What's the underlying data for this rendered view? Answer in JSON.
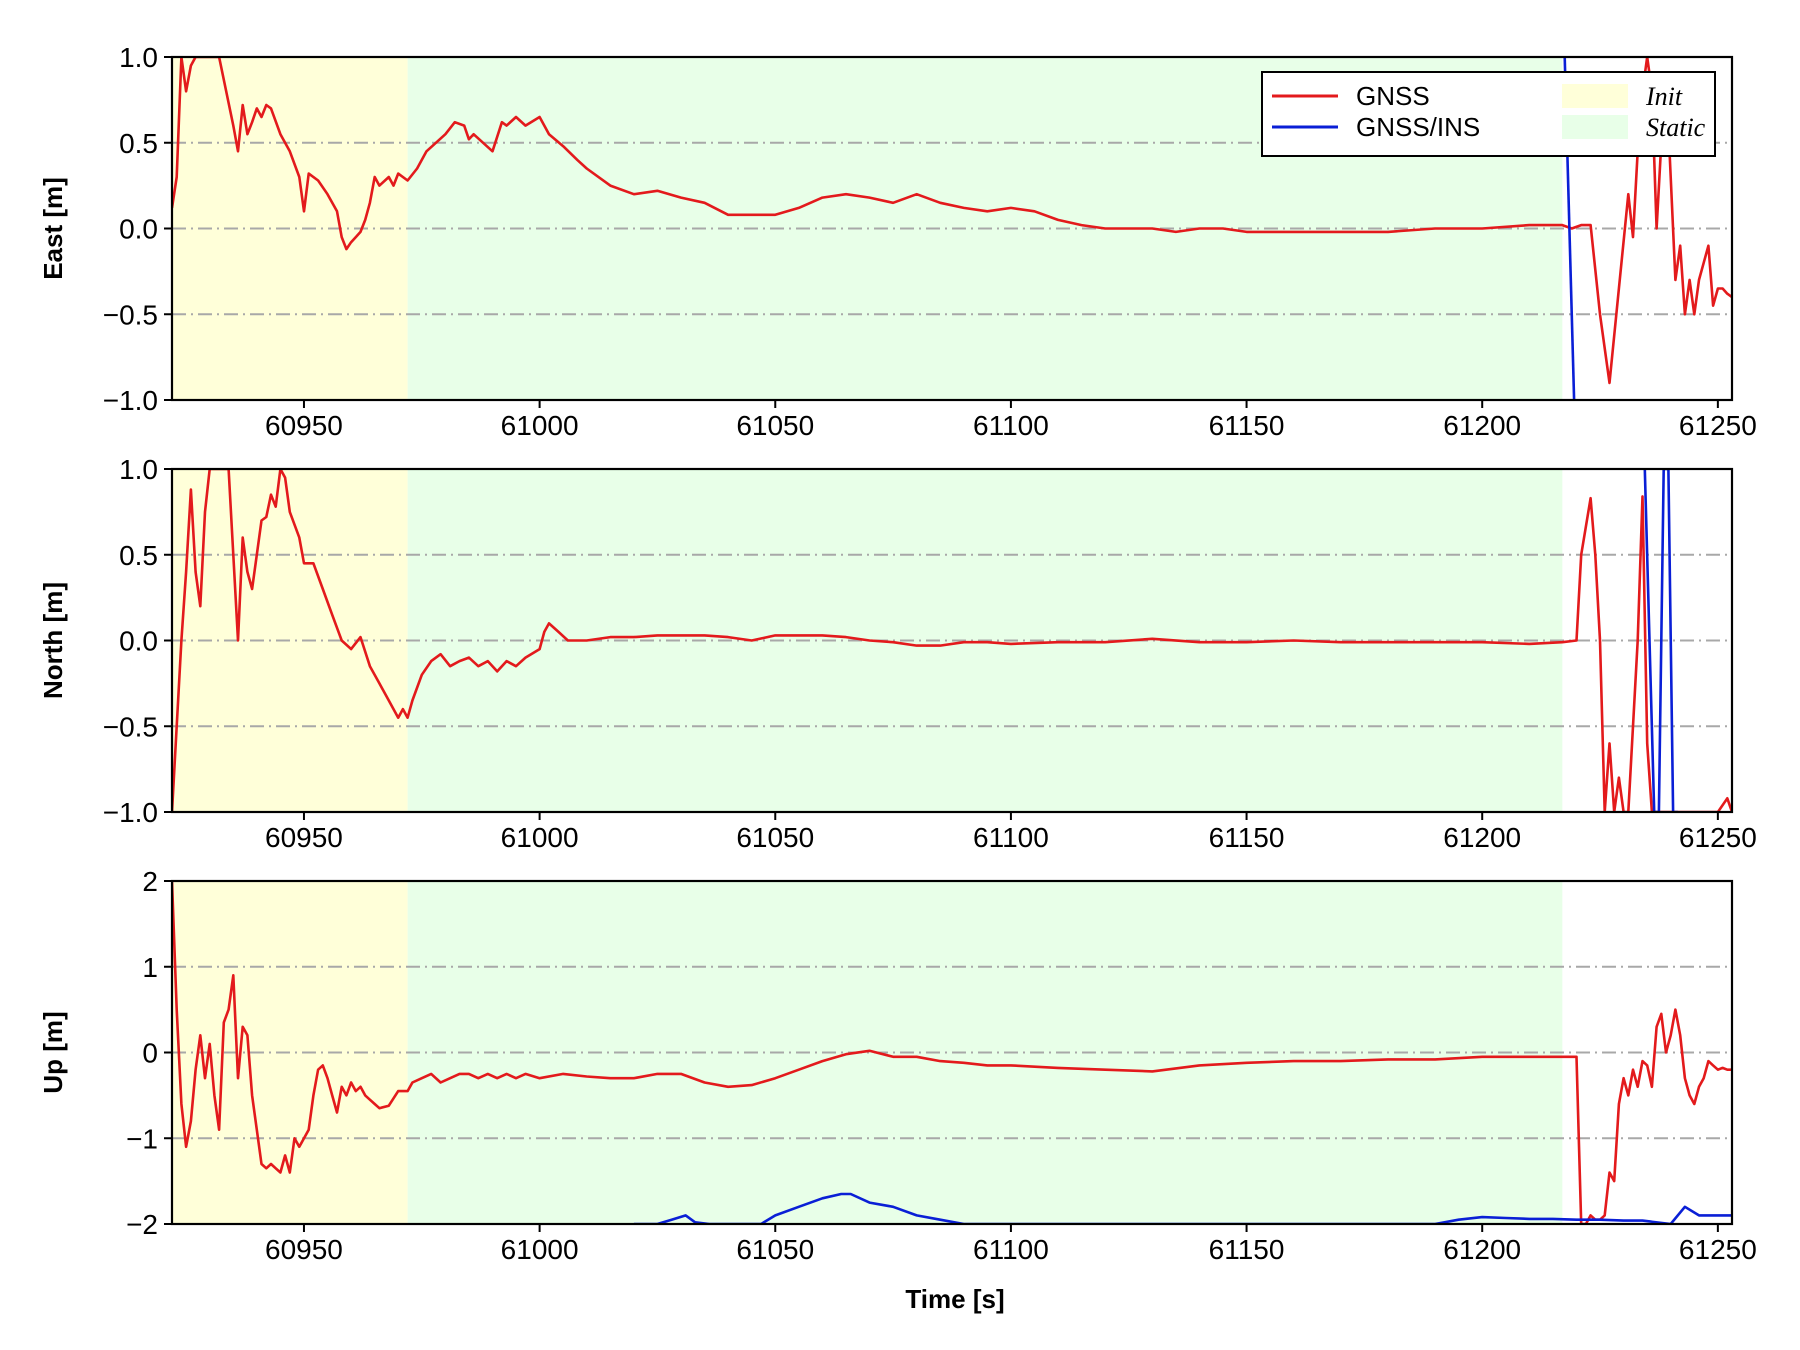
{
  "chart_data": {
    "type": "line",
    "xlabel": "Time [s]",
    "xlim": [
      60922,
      61253
    ],
    "xticks": [
      60950,
      61000,
      61050,
      61100,
      61150,
      61200,
      61250
    ],
    "grid": "horizontal dash-dot, gray",
    "legend": {
      "placement": "top-right (first panel)",
      "entries": [
        {
          "label": "GNSS",
          "kind": "line",
          "color": "#e31a1c"
        },
        {
          "label": "GNSS/INS",
          "kind": "line",
          "color": "#0a1fd6"
        },
        {
          "label": "Init",
          "kind": "patch",
          "color": "#ffffd9"
        },
        {
          "label": "Static",
          "kind": "patch",
          "color": "#e8ffe8"
        }
      ]
    },
    "regions": [
      {
        "label": "Init",
        "x": [
          60922,
          60972
        ],
        "color": "#ffffd9"
      },
      {
        "label": "Static",
        "x": [
          60972,
          61217
        ],
        "color": "#e8ffe8"
      }
    ],
    "colors": {
      "GNSS": "#e31a1c",
      "GNSS/INS": "#0a1fd6",
      "grid": "#a8a8a8"
    },
    "panels": [
      {
        "ylabel": "East [m]",
        "ylim": [
          -1.0,
          1.0
        ],
        "yticks": [
          -1.0,
          -0.5,
          0.0,
          0.5,
          1.0
        ],
        "ytick_labels": [
          "−1.0",
          "−0.5",
          "0.0",
          "0.5",
          "1.0"
        ],
        "series": [
          {
            "name": "GNSS",
            "x": [
              60922,
              60923,
              60924,
              60925,
              60926,
              60927,
              60928,
              60930,
              60932,
              60935,
              60936,
              60937,
              60938,
              60939,
              60940,
              60941,
              60942,
              60943,
              60945,
              60947,
              60949,
              60950,
              60951,
              60953,
              60955,
              60957,
              60958,
              60959,
              60960,
              60961,
              60962,
              60963,
              60964,
              60965,
              60966,
              60968,
              60969,
              60970,
              60972,
              60974,
              60976,
              60978,
              60980,
              60982,
              60984,
              60985,
              60986,
              60988,
              60990,
              60992,
              60993,
              60995,
              60997,
              61000,
              61002,
              61005,
              61008,
              61010,
              61015,
              61020,
              61025,
              61030,
              61035,
              61040,
              61045,
              61050,
              61055,
              61060,
              61065,
              61070,
              61075,
              61080,
              61085,
              61090,
              61095,
              61100,
              61105,
              61110,
              61115,
              61120,
              61125,
              61130,
              61135,
              61140,
              61145,
              61150,
              61160,
              61170,
              61180,
              61190,
              61200,
              61210,
              61217,
              61219,
              61221,
              61223,
              61225,
              61227,
              61229,
              61231,
              61232,
              61233,
              61234,
              61235,
              61236,
              61237,
              61238,
              61239,
              61240,
              61241,
              61242,
              61243,
              61244,
              61245,
              61246,
              61247,
              61248,
              61249,
              61250,
              61251,
              61252,
              61253
            ],
            "y": [
              0.12,
              0.3,
              1.0,
              0.8,
              0.95,
              1.0,
              1.0,
              1.0,
              1.0,
              0.6,
              0.45,
              0.72,
              0.55,
              0.62,
              0.7,
              0.65,
              0.72,
              0.7,
              0.55,
              0.45,
              0.3,
              0.1,
              0.32,
              0.28,
              0.2,
              0.1,
              -0.05,
              -0.12,
              -0.08,
              -0.05,
              -0.02,
              0.05,
              0.15,
              0.3,
              0.25,
              0.3,
              0.25,
              0.32,
              0.28,
              0.35,
              0.45,
              0.5,
              0.55,
              0.62,
              0.6,
              0.52,
              0.55,
              0.5,
              0.45,
              0.62,
              0.6,
              0.65,
              0.6,
              0.65,
              0.55,
              0.48,
              0.4,
              0.35,
              0.25,
              0.2,
              0.22,
              0.18,
              0.15,
              0.08,
              0.08,
              0.08,
              0.12,
              0.18,
              0.2,
              0.18,
              0.15,
              0.2,
              0.15,
              0.12,
              0.1,
              0.12,
              0.1,
              0.05,
              0.02,
              0.0,
              0.0,
              0.0,
              -0.02,
              0.0,
              0.0,
              -0.02,
              -0.02,
              -0.02,
              -0.02,
              0.0,
              0.0,
              0.02,
              0.02,
              0.0,
              0.02,
              0.02,
              -0.5,
              -0.9,
              -0.35,
              0.2,
              -0.05,
              0.45,
              0.8,
              1.0,
              0.8,
              0.0,
              0.5,
              0.9,
              0.3,
              -0.3,
              -0.1,
              -0.5,
              -0.3,
              -0.5,
              -0.3,
              -0.2,
              -0.1,
              -0.45,
              -0.35,
              -0.35,
              -0.38,
              -0.4
            ]
          },
          {
            "name": "GNSS/INS",
            "x": [
              61217.5,
              61219.5
            ],
            "y": [
              1.0,
              -1.0
            ]
          }
        ]
      },
      {
        "ylabel": "North [m]",
        "ylim": [
          -1.0,
          1.0
        ],
        "yticks": [
          -1.0,
          -0.5,
          0.0,
          0.5,
          1.0
        ],
        "ytick_labels": [
          "−1.0",
          "−0.5",
          "0.0",
          "0.5",
          "1.0"
        ],
        "series": [
          {
            "name": "GNSS",
            "x": [
              60922,
              60923,
              60924,
              60925,
              60926,
              60927,
              60928,
              60929,
              60930,
              60932,
              60934,
              60935,
              60936,
              60937,
              60938,
              60939,
              60940,
              60941,
              60942,
              60943,
              60944,
              60945,
              60946,
              60947,
              60949,
              60950,
              60952,
              60954,
              60956,
              60958,
              60960,
              60962,
              60964,
              60966,
              60968,
              60970,
              60971,
              60972,
              60973,
              60975,
              60977,
              60979,
              60981,
              60983,
              60985,
              60987,
              60989,
              60991,
              60993,
              60995,
              60997,
              61000,
              61001,
              61002,
              61004,
              61006,
              61010,
              61015,
              61020,
              61025,
              61030,
              61035,
              61040,
              61045,
              61050,
              61055,
              61060,
              61065,
              61070,
              61075,
              61080,
              61085,
              61090,
              61095,
              61100,
              61110,
              61120,
              61130,
              61140,
              61150,
              61160,
              61170,
              61180,
              61190,
              61200,
              61210,
              61217,
              61220,
              61221,
              61223,
              61224,
              61225,
              61226,
              61227,
              61228,
              61229,
              61230,
              61231,
              61232,
              61233,
              61234,
              61235,
              61236,
              61238,
              61240,
              61242,
              61244,
              61246,
              61248,
              61250,
              61252,
              61253
            ],
            "y": [
              -1.0,
              -0.5,
              0.0,
              0.4,
              0.88,
              0.4,
              0.2,
              0.75,
              1.0,
              1.0,
              1.0,
              0.5,
              0.0,
              0.6,
              0.4,
              0.3,
              0.5,
              0.7,
              0.72,
              0.85,
              0.78,
              1.0,
              0.95,
              0.75,
              0.6,
              0.45,
              0.45,
              0.3,
              0.15,
              0.0,
              -0.05,
              0.02,
              -0.15,
              -0.25,
              -0.35,
              -0.45,
              -0.4,
              -0.45,
              -0.35,
              -0.2,
              -0.12,
              -0.08,
              -0.15,
              -0.12,
              -0.1,
              -0.15,
              -0.12,
              -0.18,
              -0.12,
              -0.15,
              -0.1,
              -0.05,
              0.05,
              0.1,
              0.05,
              0.0,
              0.0,
              0.02,
              0.02,
              0.03,
              0.03,
              0.03,
              0.02,
              0.0,
              0.03,
              0.03,
              0.03,
              0.02,
              0.0,
              -0.01,
              -0.03,
              -0.03,
              -0.01,
              -0.01,
              -0.02,
              -0.01,
              -0.01,
              0.01,
              -0.01,
              -0.01,
              0.0,
              -0.01,
              -0.01,
              -0.01,
              -0.01,
              -0.02,
              -0.01,
              0.0,
              0.5,
              0.83,
              0.5,
              0.0,
              -1.0,
              -0.6,
              -1.0,
              -0.8,
              -1.0,
              -1.0,
              -0.5,
              0.0,
              0.84,
              -0.6,
              -1.0,
              -1.0,
              -1.0,
              -1.0,
              -1.0,
              -1.0,
              -1.0,
              -1.0,
              -0.92,
              -1.0
            ]
          },
          {
            "name": "GNSS/INS",
            "x": [
              61234.5,
              61236.5,
              61237.5,
              61238.5,
              61239.5,
              61240.5,
              61241.5
            ],
            "y": [
              1.0,
              -1.0,
              -1.0,
              1.0,
              1.0,
              -1.0,
              -1.0
            ]
          }
        ]
      },
      {
        "ylabel": "Up [m]",
        "ylim": [
          -2,
          2
        ],
        "yticks": [
          -2,
          -1,
          0,
          1,
          2
        ],
        "ytick_labels": [
          "−2",
          "−1",
          "0",
          "1",
          "2"
        ],
        "series": [
          {
            "name": "GNSS",
            "x": [
              60922,
              60923,
              60924,
              60925,
              60926,
              60927,
              60928,
              60929,
              60930,
              60931,
              60932,
              60933,
              60934,
              60935,
              60936,
              60937,
              60938,
              60939,
              60940,
              60941,
              60942,
              60943,
              60944,
              60945,
              60946,
              60947,
              60948,
              60949,
              60950,
              60951,
              60952,
              60953,
              60954,
              60955,
              60956,
              60957,
              60958,
              60959,
              60960,
              60961,
              60962,
              60963,
              60964,
              60965,
              60966,
              60968,
              60970,
              60972,
              60973,
              60975,
              60977,
              60979,
              60981,
              60983,
              60985,
              60987,
              60989,
              60991,
              60993,
              60995,
              60997,
              61000,
              61005,
              61010,
              61015,
              61020,
              61025,
              61030,
              61035,
              61040,
              61045,
              61050,
              61055,
              61060,
              61065,
              61070,
              61075,
              61080,
              61085,
              61090,
              61095,
              61100,
              61110,
              61120,
              61130,
              61140,
              61150,
              61160,
              61170,
              61180,
              61190,
              61200,
              61210,
              61217,
              61218,
              61219,
              61220,
              61221,
              61222,
              61223,
              61224,
              61225,
              61226,
              61227,
              61228,
              61229,
              61230,
              61231,
              61232,
              61233,
              61234,
              61235,
              61236,
              61237,
              61238,
              61239,
              61240,
              61241,
              61242,
              61243,
              61244,
              61245,
              61246,
              61247,
              61248,
              61249,
              61250,
              61251,
              61252,
              61253
            ],
            "y": [
              2.0,
              0.5,
              -0.6,
              -1.1,
              -0.8,
              -0.2,
              0.2,
              -0.3,
              0.1,
              -0.5,
              -0.9,
              0.35,
              0.5,
              0.9,
              -0.3,
              0.3,
              0.2,
              -0.5,
              -0.9,
              -1.3,
              -1.35,
              -1.3,
              -1.35,
              -1.4,
              -1.2,
              -1.4,
              -1.0,
              -1.1,
              -1.0,
              -0.9,
              -0.5,
              -0.2,
              -0.15,
              -0.3,
              -0.5,
              -0.7,
              -0.4,
              -0.5,
              -0.35,
              -0.45,
              -0.4,
              -0.5,
              -0.55,
              -0.6,
              -0.65,
              -0.62,
              -0.45,
              -0.45,
              -0.35,
              -0.3,
              -0.25,
              -0.35,
              -0.3,
              -0.25,
              -0.25,
              -0.3,
              -0.25,
              -0.3,
              -0.25,
              -0.3,
              -0.25,
              -0.3,
              -0.25,
              -0.28,
              -0.3,
              -0.3,
              -0.25,
              -0.25,
              -0.35,
              -0.4,
              -0.38,
              -0.3,
              -0.2,
              -0.1,
              -0.02,
              0.02,
              -0.05,
              -0.05,
              -0.1,
              -0.12,
              -0.15,
              -0.15,
              -0.18,
              -0.2,
              -0.22,
              -0.15,
              -0.12,
              -0.1,
              -0.1,
              -0.08,
              -0.08,
              -0.05,
              -0.05,
              -0.05,
              -0.05,
              -0.05,
              -0.05,
              -2.0,
              -2.0,
              -1.9,
              -1.95,
              -1.95,
              -1.9,
              -1.4,
              -1.5,
              -0.6,
              -0.3,
              -0.5,
              -0.2,
              -0.4,
              -0.1,
              -0.15,
              -0.4,
              0.3,
              0.45,
              0.0,
              0.2,
              0.5,
              0.2,
              -0.3,
              -0.5,
              -0.6,
              -0.4,
              -0.3,
              -0.1,
              -0.15,
              -0.2,
              -0.18,
              -0.2,
              -0.2
            ]
          },
          {
            "name": "GNSS/INS",
            "x": [
              61020,
              61025,
              61028,
              61031,
              61033,
              61036,
              61040,
              61047,
              61050,
              61055,
              61060,
              61064,
              61066,
              61070,
              61075,
              61080,
              61085,
              61090,
              61095,
              61190,
              61195,
              61200,
              61205,
              61210,
              61215,
              61220,
              61225,
              61230,
              61234,
              61240,
              61243,
              61246,
              61249,
              61253
            ],
            "y": [
              -2.0,
              -2.0,
              -1.95,
              -1.9,
              -1.98,
              -2.0,
              -2.0,
              -2.0,
              -1.9,
              -1.8,
              -1.7,
              -1.65,
              -1.65,
              -1.75,
              -1.8,
              -1.9,
              -1.95,
              -2.0,
              -2.0,
              -2.0,
              -1.95,
              -1.92,
              -1.93,
              -1.94,
              -1.94,
              -1.95,
              -1.95,
              -1.96,
              -1.96,
              -2.0,
              -1.8,
              -1.9,
              -1.9,
              -1.9
            ]
          }
        ]
      }
    ]
  }
}
